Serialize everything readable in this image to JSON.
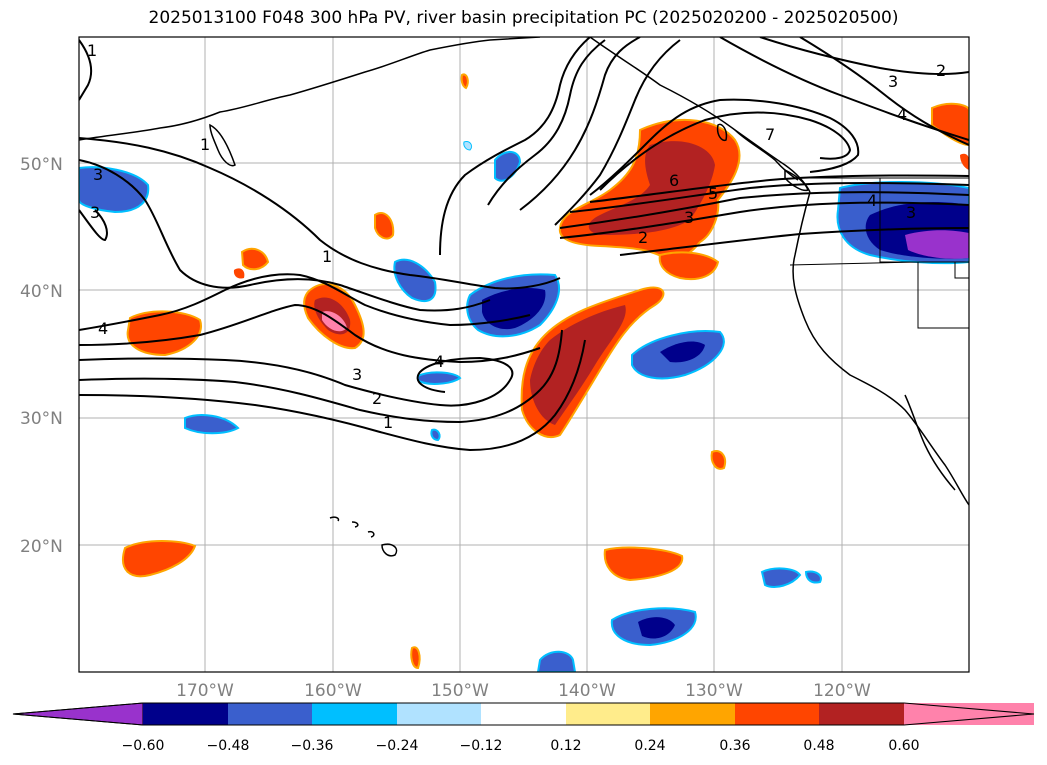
{
  "title": "2025013100 F048 300 hPa PV, river basin precipitation PC (2025020200 - 2025020500)",
  "map": {
    "lon_labels": [
      "170°W",
      "160°W",
      "150°W",
      "140°W",
      "130°W",
      "120°W"
    ],
    "lat_labels": [
      "50°N",
      "40°N",
      "30°N",
      "20°N"
    ],
    "land_color": "#ffffff",
    "coastline_color": "#000000",
    "gridline_color": "#b0b0b0"
  },
  "pv_contours": {
    "color": "#000000",
    "labels": [
      "1",
      "1",
      "3",
      "3",
      "4",
      "1",
      "3",
      "2",
      "1",
      "4",
      "2",
      "3",
      "5",
      "6",
      "7",
      "3",
      "2",
      "4",
      "4",
      "3"
    ]
  },
  "colorbar": {
    "colors": [
      "#9932cc",
      "#00008b",
      "#3a5fcd",
      "#00bfff",
      "#b0e2ff",
      "#ffffff",
      "#ffec8b",
      "#ffa500",
      "#ff4500",
      "#b22222",
      "#ff82ab"
    ],
    "tick_labels": [
      "−0.60",
      "−0.48",
      "−0.36",
      "−0.24",
      "−0.12",
      "0.12",
      "0.24",
      "0.36",
      "0.48",
      "0.60"
    ]
  }
}
